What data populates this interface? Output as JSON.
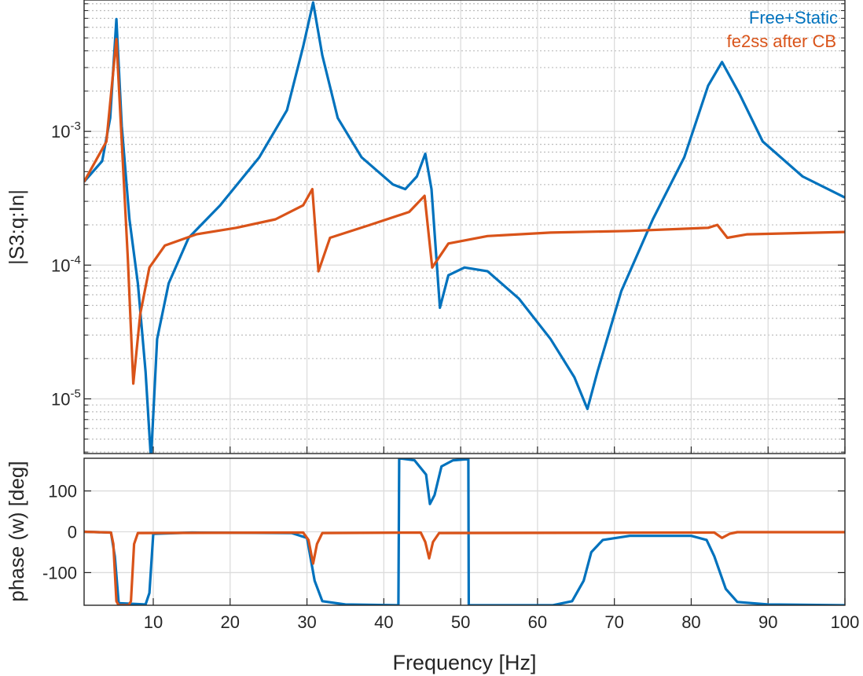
{
  "chart_data": [
    {
      "type": "line",
      "yscale": "log",
      "title": "",
      "xlabel": "",
      "ylabel": "|S3:q:In|",
      "xlim": [
        1,
        100
      ],
      "ylim": [
        3.9e-06,
        0.0096
      ],
      "xticks": [
        10,
        20,
        30,
        40,
        50,
        60,
        70,
        80,
        90,
        100
      ],
      "yticks": [
        {
          "value": 0.001,
          "base": "10",
          "exp": "-3"
        },
        {
          "value": 0.0001,
          "base": "10",
          "exp": "-4"
        },
        {
          "value": 1e-05,
          "base": "10",
          "exp": "-5"
        }
      ],
      "grid": true,
      "legend": {
        "placement": "top-right",
        "entries": [
          "Free+Static",
          "fe2ss after CB"
        ]
      },
      "series": [
        {
          "name": "Free+Static",
          "color": "#0072BD",
          "points": [
            [
              1,
              0.00042
            ],
            [
              3.35,
              0.0006
            ],
            [
              4.4,
              0.00126
            ],
            [
              5.2,
              0.0069
            ],
            [
              5.9,
              0.0011
            ],
            [
              6.9,
              0.00022
            ],
            [
              8.0,
              7.3e-05
            ],
            [
              9.0,
              1.6e-05
            ],
            [
              9.7,
              3.5e-06
            ],
            [
              10.5,
              2.8e-05
            ],
            [
              12,
              7.3e-05
            ],
            [
              14.6,
              0.00016
            ],
            [
              18.7,
              0.00028
            ],
            [
              23.8,
              0.00064
            ],
            [
              27.4,
              0.00144
            ],
            [
              29.5,
              0.0043
            ],
            [
              30.8,
              0.0092
            ],
            [
              32,
              0.0037
            ],
            [
              34,
              0.00126
            ],
            [
              37.1,
              0.00064
            ],
            [
              41.2,
              0.0004
            ],
            [
              42.8,
              0.00037
            ],
            [
              44.3,
              0.00046
            ],
            [
              45.4,
              0.00068
            ],
            [
              46.2,
              0.00037
            ],
            [
              47.3,
              4.8e-05
            ],
            [
              48.4,
              8.4e-05
            ],
            [
              50.5,
              9.6e-05
            ],
            [
              53.5,
              9e-05
            ],
            [
              57.6,
              5.6e-05
            ],
            [
              61.7,
              2.8e-05
            ],
            [
              64.8,
              1.45e-05
            ],
            [
              66.5,
              8.4e-06
            ],
            [
              67.8,
              1.6e-05
            ],
            [
              70.9,
              6.4e-05
            ],
            [
              75,
              0.00022
            ],
            [
              79.1,
              0.00064
            ],
            [
              82.2,
              0.0022
            ],
            [
              84,
              0.0033
            ],
            [
              86.3,
              0.0019
            ],
            [
              89.3,
              0.00084
            ],
            [
              94.5,
              0.00046
            ],
            [
              100,
              0.00032
            ]
          ]
        },
        {
          "name": "fe2ss after CB",
          "color": "#D95319",
          "points": [
            [
              1,
              0.00042
            ],
            [
              3.9,
              0.00084
            ],
            [
              5.2,
              0.0049
            ],
            [
              5.9,
              0.00084
            ],
            [
              6.7,
              0.00011
            ],
            [
              7.4,
              1.3e-05
            ],
            [
              8.3,
              4.3e-05
            ],
            [
              9.5,
              9.6e-05
            ],
            [
              11.5,
              0.00014
            ],
            [
              15.6,
              0.00017
            ],
            [
              20.8,
              0.00019
            ],
            [
              25.9,
              0.00022
            ],
            [
              29.5,
              0.00028
            ],
            [
              30.7,
              0.00037
            ],
            [
              31.5,
              9e-05
            ],
            [
              33,
              0.00016
            ],
            [
              38.2,
              0.0002
            ],
            [
              43.3,
              0.00025
            ],
            [
              45.3,
              0.00033
            ],
            [
              46.3,
              9.6e-05
            ],
            [
              48.4,
              0.000145
            ],
            [
              53.5,
              0.000165
            ],
            [
              61.7,
              0.000175
            ],
            [
              71.9,
              0.00018
            ],
            [
              82.2,
              0.00019
            ],
            [
              83.4,
              0.0002
            ],
            [
              84.7,
              0.00016
            ],
            [
              87.3,
              0.00017
            ],
            [
              100,
              0.000177
            ]
          ]
        }
      ]
    },
    {
      "type": "line",
      "title": "",
      "xlabel": "Frequency [Hz]",
      "ylabel": "phase (w) [deg]",
      "xlim": [
        1,
        100
      ],
      "ylim": [
        -180,
        180
      ],
      "xticks": [
        10,
        20,
        30,
        40,
        50,
        60,
        70,
        80,
        90,
        100
      ],
      "yticks": [
        100,
        0,
        -100
      ],
      "grid": true,
      "series": [
        {
          "name": "Free+Static",
          "color": "#0072BD",
          "points": [
            [
              1,
              0
            ],
            [
              4.5,
              -2
            ],
            [
              5,
              -60
            ],
            [
              5.5,
              -175
            ],
            [
              9,
              -178
            ],
            [
              9.5,
              -150
            ],
            [
              10,
              -5
            ],
            [
              15,
              -2
            ],
            [
              28,
              -3
            ],
            [
              30,
              -15
            ],
            [
              31,
              -120
            ],
            [
              32,
              -170
            ],
            [
              35,
              -178
            ],
            [
              41.9,
              -180
            ],
            [
              42,
              180
            ],
            [
              44,
              175
            ],
            [
              45.5,
              140
            ],
            [
              46,
              68
            ],
            [
              46.6,
              90
            ],
            [
              47.5,
              160
            ],
            [
              49,
              175
            ],
            [
              51,
              178
            ],
            [
              51.05,
              -180
            ],
            [
              62,
              -180
            ],
            [
              64.5,
              -170
            ],
            [
              66,
              -120
            ],
            [
              67,
              -50
            ],
            [
              68.5,
              -20
            ],
            [
              72,
              -10
            ],
            [
              80,
              -10
            ],
            [
              82,
              -20
            ],
            [
              83,
              -60
            ],
            [
              84.5,
              -140
            ],
            [
              86,
              -172
            ],
            [
              90,
              -178
            ],
            [
              100,
              -180
            ]
          ]
        },
        {
          "name": "fe2ss after CB",
          "color": "#D95319",
          "points": [
            [
              1,
              0
            ],
            [
              4.5,
              -2
            ],
            [
              4.8,
              -30
            ],
            [
              5.2,
              -170
            ],
            [
              5.5,
              -180
            ],
            [
              6.8,
              -180
            ],
            [
              7.1,
              -170
            ],
            [
              7.5,
              -30
            ],
            [
              8,
              -3
            ],
            [
              29.5,
              -2
            ],
            [
              30.2,
              -20
            ],
            [
              30.8,
              -78
            ],
            [
              31.3,
              -30
            ],
            [
              32,
              -3
            ],
            [
              44.8,
              -2
            ],
            [
              45.4,
              -25
            ],
            [
              45.9,
              -65
            ],
            [
              46.4,
              -25
            ],
            [
              47.2,
              -3
            ],
            [
              83,
              -2
            ],
            [
              84,
              -15
            ],
            [
              85,
              -5
            ],
            [
              86,
              -1
            ],
            [
              100,
              -1
            ]
          ]
        }
      ]
    }
  ]
}
